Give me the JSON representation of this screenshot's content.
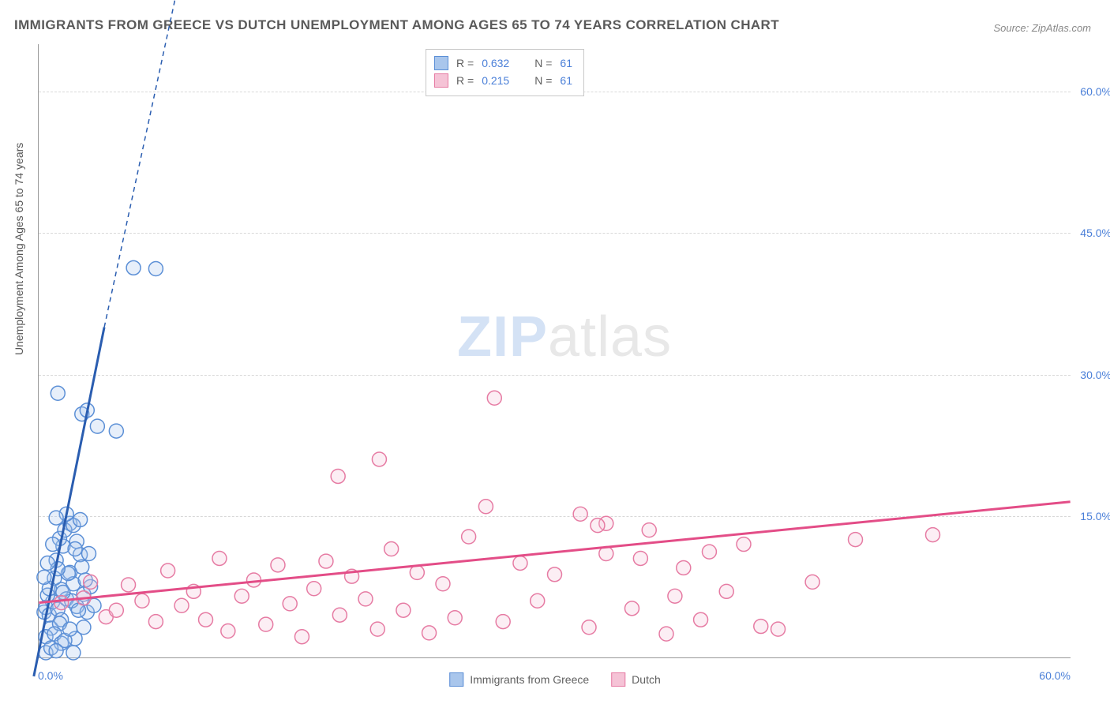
{
  "title": "IMMIGRANTS FROM GREECE VS DUTCH UNEMPLOYMENT AMONG AGES 65 TO 74 YEARS CORRELATION CHART",
  "source": "Source: ZipAtlas.com",
  "y_axis_label": "Unemployment Among Ages 65 to 74 years",
  "watermark": {
    "zip": "ZIP",
    "atlas": "atlas"
  },
  "chart": {
    "type": "scatter",
    "xlim": [
      0,
      60
    ],
    "ylim": [
      0,
      65
    ],
    "x_tick_labels": {
      "min": "0.0%",
      "max": "60.0%"
    },
    "y_ticks": [
      15,
      30,
      45,
      60
    ],
    "y_tick_labels": [
      "15.0%",
      "30.0%",
      "45.0%",
      "60.0%"
    ],
    "background_color": "#ffffff",
    "grid_color": "#d8d8d8",
    "axis_color": "#999999",
    "tick_label_color": "#4a7fd8",
    "marker_radius": 9,
    "marker_stroke_width": 1.5,
    "marker_fill_opacity": 0.28,
    "trend_line_width": 3,
    "trend_dash": "6,5"
  },
  "series": [
    {
      "name": "Immigrants from Greece",
      "color_stroke": "#5b8fd6",
      "color_fill": "#a9c6ec",
      "trend_color": "#2a5db0",
      "R": "0.632",
      "N": "61",
      "trend": {
        "x1": -0.3,
        "y1": -2,
        "x2": 3.8,
        "y2": 35,
        "x2_dash": 11.5,
        "y2_dash": 100
      },
      "points": [
        [
          0.3,
          4.8
        ],
        [
          0.4,
          5.3
        ],
        [
          0.6,
          4.5
        ],
        [
          0.8,
          5.9
        ],
        [
          0.5,
          6.6
        ],
        [
          1.1,
          5.1
        ],
        [
          1.3,
          7.2
        ],
        [
          0.9,
          8.4
        ],
        [
          1.6,
          6.2
        ],
        [
          1.8,
          9.0
        ],
        [
          1.0,
          10.3
        ],
        [
          1.4,
          11.8
        ],
        [
          0.7,
          3.1
        ],
        [
          2.0,
          7.8
        ],
        [
          1.2,
          12.6
        ],
        [
          2.2,
          5.4
        ],
        [
          1.8,
          14.2
        ],
        [
          2.4,
          10.9
        ],
        [
          1.5,
          13.5
        ],
        [
          0.4,
          2.2
        ],
        [
          2.6,
          6.7
        ],
        [
          2.0,
          14.0
        ],
        [
          1.7,
          8.9
        ],
        [
          2.8,
          4.8
        ],
        [
          2.2,
          12.3
        ],
        [
          1.3,
          4.0
        ],
        [
          3.0,
          7.5
        ],
        [
          2.5,
          9.6
        ],
        [
          1.9,
          6.0
        ],
        [
          2.3,
          5.0
        ],
        [
          0.6,
          7.3
        ],
        [
          1.1,
          9.4
        ],
        [
          2.1,
          11.5
        ],
        [
          0.8,
          12.0
        ],
        [
          1.6,
          15.2
        ],
        [
          1.0,
          14.8
        ],
        [
          2.7,
          8.2
        ],
        [
          1.4,
          6.9
        ],
        [
          2.9,
          11.0
        ],
        [
          1.2,
          3.6
        ],
        [
          2.4,
          14.6
        ],
        [
          0.5,
          10.0
        ],
        [
          0.9,
          2.5
        ],
        [
          0.4,
          0.5
        ],
        [
          1.3,
          1.5
        ],
        [
          2.5,
          25.8
        ],
        [
          2.8,
          26.2
        ],
        [
          3.4,
          24.5
        ],
        [
          4.5,
          24.0
        ],
        [
          1.1,
          28.0
        ],
        [
          5.5,
          41.3
        ],
        [
          6.8,
          41.2
        ],
        [
          2.1,
          2.0
        ],
        [
          2.6,
          3.2
        ],
        [
          0.7,
          1.0
        ],
        [
          1.5,
          1.8
        ],
        [
          3.2,
          5.5
        ],
        [
          1.8,
          3.0
        ],
        [
          0.3,
          8.5
        ],
        [
          1.0,
          0.7
        ],
        [
          2.0,
          0.5
        ]
      ]
    },
    {
      "name": "Dutch",
      "color_stroke": "#e67ba3",
      "color_fill": "#f5c3d6",
      "trend_color": "#e34d87",
      "R": "0.215",
      "N": "61",
      "trend": {
        "x1": 0,
        "y1": 5.8,
        "x2": 60,
        "y2": 16.5
      },
      "points": [
        [
          1.3,
          5.8
        ],
        [
          2.6,
          6.3
        ],
        [
          3.9,
          4.3
        ],
        [
          3.0,
          8.0
        ],
        [
          4.5,
          5.0
        ],
        [
          5.2,
          7.7
        ],
        [
          6.0,
          6.0
        ],
        [
          6.8,
          3.8
        ],
        [
          7.5,
          9.2
        ],
        [
          8.3,
          5.5
        ],
        [
          9.0,
          7.0
        ],
        [
          9.7,
          4.0
        ],
        [
          10.5,
          10.5
        ],
        [
          11.0,
          2.8
        ],
        [
          11.8,
          6.5
        ],
        [
          12.5,
          8.2
        ],
        [
          13.2,
          3.5
        ],
        [
          13.9,
          9.8
        ],
        [
          14.6,
          5.7
        ],
        [
          15.3,
          2.2
        ],
        [
          16.0,
          7.3
        ],
        [
          16.7,
          10.2
        ],
        [
          17.5,
          4.5
        ],
        [
          18.2,
          8.6
        ],
        [
          19.0,
          6.2
        ],
        [
          19.7,
          3.0
        ],
        [
          20.5,
          11.5
        ],
        [
          21.2,
          5.0
        ],
        [
          22.0,
          9.0
        ],
        [
          22.7,
          2.6
        ],
        [
          23.5,
          7.8
        ],
        [
          24.2,
          4.2
        ],
        [
          25.0,
          12.8
        ],
        [
          26.0,
          16.0
        ],
        [
          17.4,
          19.2
        ],
        [
          19.8,
          21.0
        ],
        [
          27.0,
          3.8
        ],
        [
          28.0,
          10.0
        ],
        [
          29.0,
          6.0
        ],
        [
          30.0,
          8.8
        ],
        [
          31.5,
          15.2
        ],
        [
          32.0,
          3.2
        ],
        [
          33.0,
          11.0
        ],
        [
          34.5,
          5.2
        ],
        [
          35.5,
          13.5
        ],
        [
          36.5,
          2.5
        ],
        [
          37.5,
          9.5
        ],
        [
          38.5,
          4.0
        ],
        [
          40.0,
          7.0
        ],
        [
          41.0,
          12.0
        ],
        [
          42.0,
          3.3
        ],
        [
          26.5,
          27.5
        ],
        [
          33.0,
          14.2
        ],
        [
          35.0,
          10.5
        ],
        [
          37.0,
          6.5
        ],
        [
          39.0,
          11.2
        ],
        [
          43.0,
          3.0
        ],
        [
          45.0,
          8.0
        ],
        [
          47.5,
          12.5
        ],
        [
          52.0,
          13.0
        ],
        [
          32.5,
          14.0
        ]
      ]
    }
  ],
  "legend": {
    "R_label": "R =",
    "N_label": "N ="
  },
  "bottom_legend": [
    {
      "label": "Immigrants from Greece",
      "stroke": "#5b8fd6",
      "fill": "#a9c6ec"
    },
    {
      "label": "Dutch",
      "stroke": "#e67ba3",
      "fill": "#f5c3d6"
    }
  ]
}
